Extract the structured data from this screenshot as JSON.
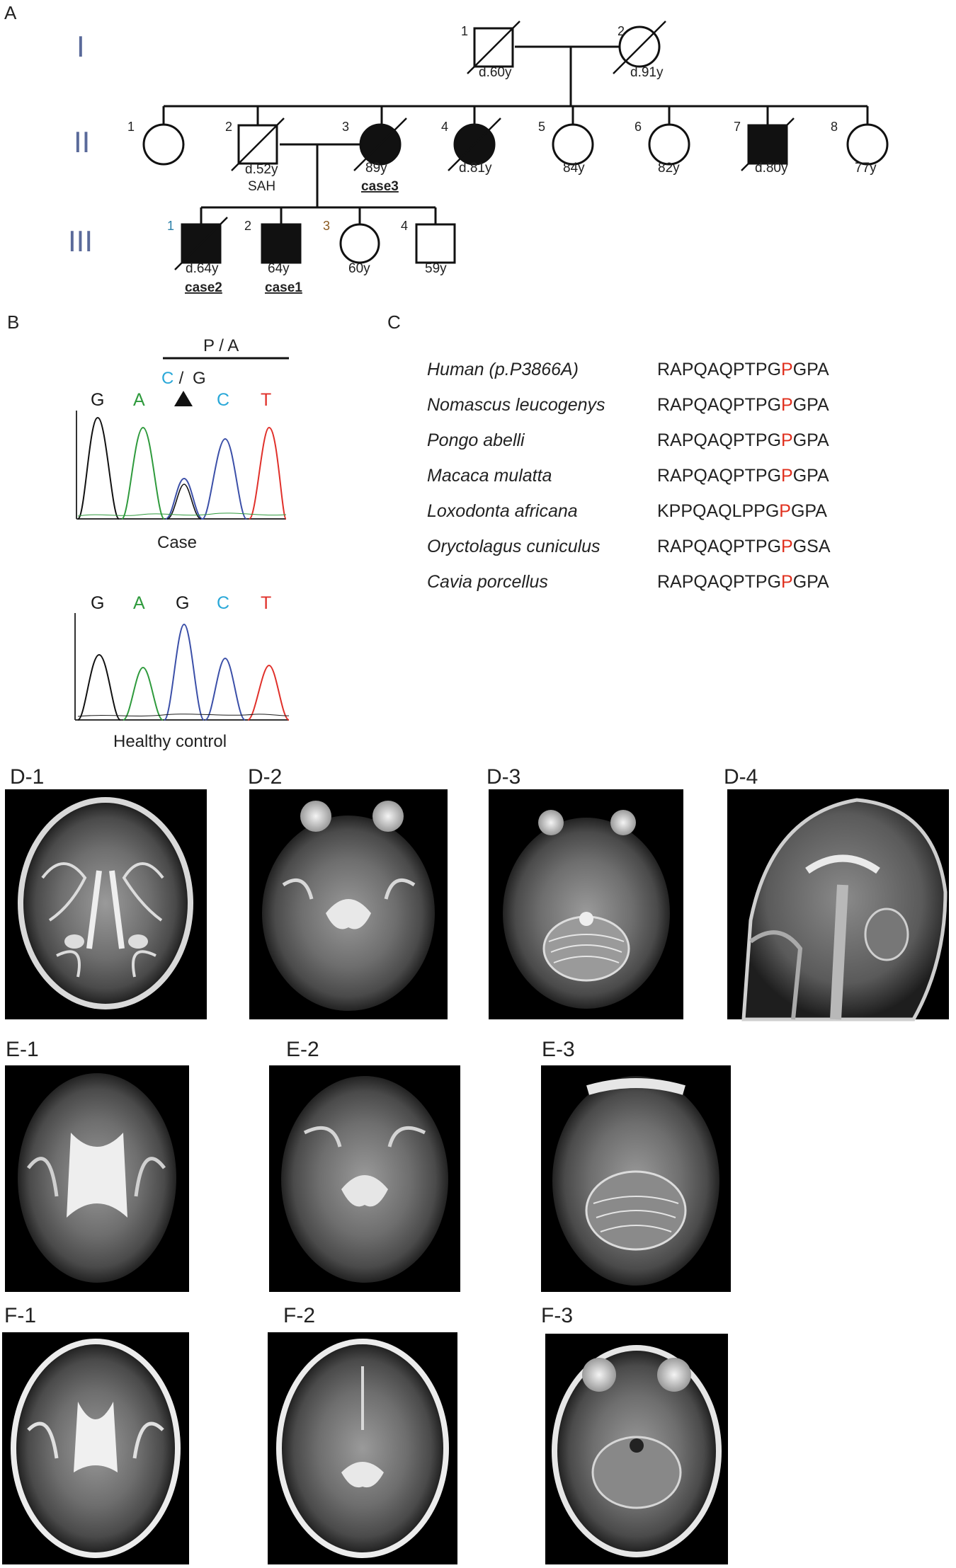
{
  "panels": {
    "A": "A",
    "B": "B",
    "C": "C",
    "D1": "D-1",
    "D2": "D-2",
    "D3": "D-3",
    "D4": "D-4",
    "E1": "E-1",
    "E2": "E-2",
    "E3": "E-3",
    "F1": "F-1",
    "F2": "F-2",
    "F3": "F-3"
  },
  "pedigree": {
    "generations": [
      "I",
      "II",
      "III"
    ],
    "gen1": [
      {
        "num": "1",
        "label": "d.60y"
      },
      {
        "num": "2",
        "label": "d.91y"
      }
    ],
    "gen2": [
      {
        "num": "1",
        "label": ""
      },
      {
        "num": "2",
        "label": "d.52y",
        "sub": "SAH"
      },
      {
        "num": "3",
        "label": "89y",
        "sub": "case3"
      },
      {
        "num": "4",
        "label": "d.81y"
      },
      {
        "num": "5",
        "label": "84y"
      },
      {
        "num": "6",
        "label": "82y"
      },
      {
        "num": "7",
        "label": "d.80y"
      },
      {
        "num": "8",
        "label": "77y"
      }
    ],
    "gen3": [
      {
        "num": "1",
        "label": "d.64y",
        "sub": "case2"
      },
      {
        "num": "2",
        "label": "64y",
        "sub": "case1"
      },
      {
        "num": "3",
        "label": "60y"
      },
      {
        "num": "4",
        "label": "59y"
      }
    ]
  },
  "chromatogram": {
    "aa_change": "P / A",
    "variant_c": "C",
    "variant_sep": " / ",
    "variant_g": "G",
    "case_bases": [
      "G",
      "A",
      "",
      "C",
      "T"
    ],
    "control_bases": [
      "G",
      "A",
      "G",
      "C",
      "T"
    ],
    "case_label": "Case",
    "control_label": "Healthy control",
    "colors": {
      "G": "#1a1a1a",
      "A": "#2e9a3c",
      "C": "#2aa8d8",
      "T": "#e0302a",
      "trace_mix": "#3b4fa8"
    }
  },
  "alignment": {
    "highlight_color": "#e0301e",
    "rows": [
      {
        "species": "Human (p.P3866A)",
        "pre": "RAPQAQPTPG",
        "hl": "P",
        "post": "GPA"
      },
      {
        "species": "Nomascus leucogenys",
        "pre": "RAPQAQPTPG",
        "hl": "P",
        "post": "GPA"
      },
      {
        "species": "Pongo abelli",
        "pre": "RAPQAQPTPG",
        "hl": "P",
        "post": "GPA"
      },
      {
        "species": "Macaca mulatta",
        "pre": "RAPQAQPTPG",
        "hl": "P",
        "post": "GPA"
      },
      {
        "species": "Loxodonta africana",
        "pre": "KPPQAQLPPG",
        "hl": "P",
        "post": "GPA"
      },
      {
        "species": "Oryctolagus cuniculus",
        "pre": "RAPQAQPTPG",
        "hl": "P",
        "post": "GSA"
      },
      {
        "species": "Cavia porcellus",
        "pre": "RAPQAQPTPG",
        "hl": "P",
        "post": "GPA"
      }
    ]
  }
}
